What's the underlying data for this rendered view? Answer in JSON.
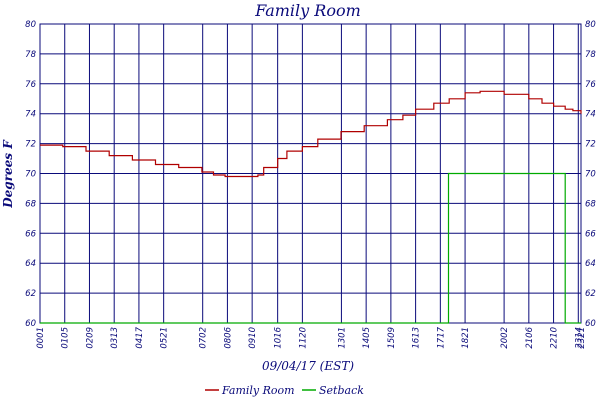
{
  "chart_data": {
    "type": "line",
    "title": "Family Room",
    "ylabel": "Degrees F",
    "xlabel": "09/04/17 (EST)",
    "ylim": [
      60,
      80
    ],
    "yticks": [
      60,
      62,
      64,
      66,
      68,
      70,
      72,
      74,
      76,
      78,
      80
    ],
    "xticks": [
      "00:01",
      "01:05",
      "02:09",
      "03:13",
      "04:17",
      "05:21",
      "07:02",
      "08:06",
      "09:10",
      "10:16",
      "11:20",
      "13:01",
      "14:05",
      "15:09",
      "16:13",
      "17:17",
      "18:21",
      "20:02",
      "21:06",
      "22:10",
      "23:14",
      "23:21"
    ],
    "xrange": [
      "00:01",
      "23:21"
    ],
    "grid": true,
    "legend_position": "bottom",
    "series": [
      {
        "name": "Family Room",
        "color": "#b00000",
        "points": [
          [
            "00:01",
            71.9
          ],
          [
            "01:00",
            71.8
          ],
          [
            "02:00",
            71.5
          ],
          [
            "03:00",
            71.2
          ],
          [
            "04:00",
            70.9
          ],
          [
            "05:00",
            70.6
          ],
          [
            "06:00",
            70.4
          ],
          [
            "07:00",
            70.1
          ],
          [
            "07:30",
            69.9
          ],
          [
            "08:00",
            69.8
          ],
          [
            "09:00",
            69.8
          ],
          [
            "09:25",
            69.9
          ],
          [
            "09:40",
            70.4
          ],
          [
            "10:16",
            71.0
          ],
          [
            "10:40",
            71.5
          ],
          [
            "11:20",
            71.8
          ],
          [
            "12:00",
            72.3
          ],
          [
            "13:00",
            72.8
          ],
          [
            "14:00",
            73.2
          ],
          [
            "15:00",
            73.6
          ],
          [
            "15:40",
            73.9
          ],
          [
            "16:13",
            74.3
          ],
          [
            "17:00",
            74.7
          ],
          [
            "17:40",
            75.0
          ],
          [
            "18:21",
            75.4
          ],
          [
            "19:00",
            75.5
          ],
          [
            "19:40",
            75.5
          ],
          [
            "20:02",
            75.3
          ],
          [
            "21:06",
            75.0
          ],
          [
            "21:40",
            74.7
          ],
          [
            "22:10",
            74.5
          ],
          [
            "22:40",
            74.3
          ],
          [
            "23:00",
            74.2
          ],
          [
            "23:21",
            74.0
          ]
        ]
      },
      {
        "name": "Setback",
        "color": "#00aa00",
        "points": [
          [
            "00:01",
            60
          ],
          [
            "17:33",
            60
          ],
          [
            "17:38",
            70
          ],
          [
            "22:35",
            70
          ],
          [
            "22:40",
            60
          ],
          [
            "23:21",
            60
          ]
        ]
      }
    ]
  }
}
